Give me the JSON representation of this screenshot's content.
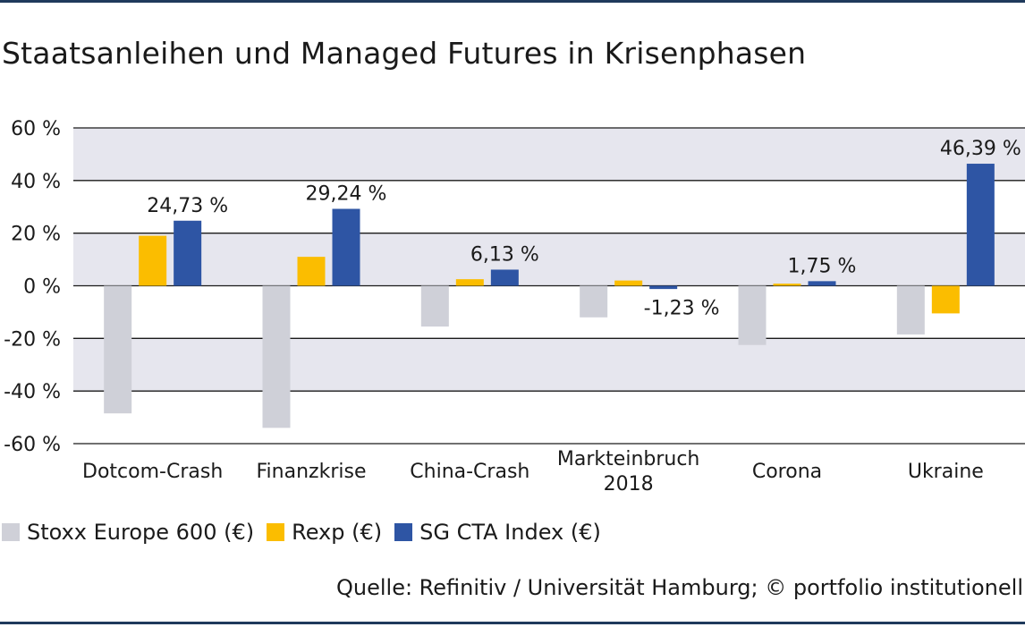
{
  "chart_data": {
    "type": "bar",
    "title": "Staatsanleihen und Managed Futures in Krisenphasen",
    "categories": [
      [
        "Dotcom-Crash"
      ],
      [
        "Finanzkrise"
      ],
      [
        "China-Crash"
      ],
      [
        "Markteinbruch",
        "2018"
      ],
      [
        "Corona"
      ],
      [
        "Ukraine"
      ]
    ],
    "series": [
      {
        "name": "Stoxx Europe 600 (€)",
        "color": "#cfd0d8",
        "values": [
          -48.5,
          -54,
          -15.5,
          -12,
          -22.5,
          -18.5
        ]
      },
      {
        "name": "Rexp (€)",
        "color": "#fbbd00",
        "values": [
          19,
          11,
          2.5,
          2,
          0.8,
          -10.5
        ]
      },
      {
        "name": "SG CTA Index (€)",
        "color": "#2e55a4",
        "values": [
          24.73,
          29.24,
          6.13,
          -1.23,
          1.75,
          46.39
        ]
      }
    ],
    "data_labels": {
      "series": "SG CTA Index (€)",
      "labels": [
        "24,73 %",
        "29,24 %",
        "6,13 %",
        "-1,23 %",
        "1,75 %",
        "46,39 %"
      ]
    },
    "ylim": [
      -60,
      60
    ],
    "yticks": [
      60,
      40,
      20,
      0,
      -20,
      -40,
      -60
    ],
    "ytick_labels": [
      "60 %",
      "40 %",
      "20 %",
      "0 %",
      "-20 %",
      "-40 %",
      "-60 %"
    ],
    "xlabel": "",
    "ylabel": "",
    "grid": true,
    "band_color": "#e6e6ee",
    "legend_position": "bottom-left"
  },
  "source": "Quelle: Refinitiv / Universität Hamburg; © portfolio institutionell",
  "colors": {
    "rule": "#1f3a5c",
    "axis": "#1a1a1a"
  }
}
